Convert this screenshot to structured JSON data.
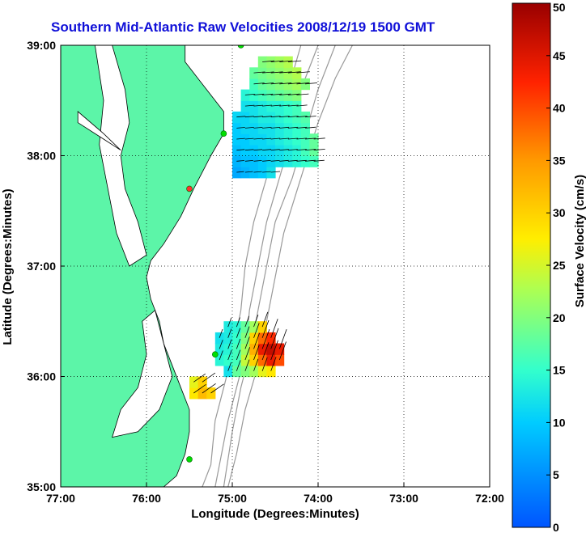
{
  "chart_data": {
    "type": "heatmap",
    "title": "Southern Mid-Atlantic Raw Velocities 2008/12/19 1500 GMT",
    "xlabel": "Longitude (Degrees:Minutes)",
    "ylabel": "Latitude (Degrees:Minutes)",
    "xlim": [
      -77,
      -72
    ],
    "ylim": [
      35,
      39
    ],
    "x_ticks": [
      {
        "value": -77,
        "label": "77:00"
      },
      {
        "value": -76,
        "label": "76:00"
      },
      {
        "value": -75,
        "label": "75:00"
      },
      {
        "value": -74,
        "label": "74:00"
      },
      {
        "value": -73,
        "label": "73:00"
      },
      {
        "value": -72,
        "label": "72:00"
      }
    ],
    "y_ticks": [
      {
        "value": 35,
        "label": "35:00"
      },
      {
        "value": 36,
        "label": "36:00"
      },
      {
        "value": 37,
        "label": "37:00"
      },
      {
        "value": 38,
        "label": "38:00"
      },
      {
        "value": 39,
        "label": "39:00"
      }
    ],
    "grid": "dotted",
    "colorbar": {
      "label": "Surface Velocity (cm/s)",
      "range": [
        0,
        50
      ],
      "ticks": [
        "0",
        "5",
        "10",
        "15",
        "20",
        "25",
        "30",
        "35",
        "40",
        "45",
        "50"
      ],
      "placement": "right"
    },
    "land_color": "#5cf5a8",
    "regions": [
      {
        "lon": [
          -74.95,
          -74.85,
          -74.75,
          -74.65,
          -74.55,
          -74.45,
          -74.35,
          -74.25,
          -74.15,
          -74.05
        ],
        "lat": [
          37.85,
          37.95,
          38.05,
          38.15,
          38.25,
          38.35,
          38.45,
          38.55,
          38.65,
          38.75,
          38.85
        ],
        "cells": [
          [
            7,
            8,
            9,
            10,
            12,
            null,
            null,
            null,
            null,
            null
          ],
          [
            8,
            9,
            9,
            10,
            11,
            12,
            13,
            14,
            15,
            16
          ],
          [
            9,
            10,
            10,
            11,
            11,
            12,
            13,
            14,
            16,
            18
          ],
          [
            10,
            10,
            11,
            11,
            12,
            13,
            14,
            15,
            16,
            18
          ],
          [
            10,
            11,
            11,
            12,
            12,
            13,
            14,
            15,
            16,
            null
          ],
          [
            11,
            11,
            12,
            13,
            13,
            14,
            15,
            16,
            17,
            null
          ],
          [
            null,
            12,
            12,
            13,
            14,
            14,
            15,
            16,
            null,
            null
          ],
          [
            null,
            14,
            15,
            16,
            17,
            18,
            19,
            20,
            null,
            null
          ],
          [
            null,
            null,
            16,
            18,
            19,
            20,
            21,
            22,
            20,
            null
          ],
          [
            null,
            null,
            18,
            19,
            20,
            21,
            22,
            23,
            null,
            null
          ],
          [
            null,
            null,
            null,
            20,
            21,
            22,
            23,
            null,
            null,
            null
          ]
        ],
        "direction_deg": 85
      },
      {
        "lon": [
          -75.15,
          -75.05,
          -74.95,
          -74.85,
          -74.75,
          -74.65,
          -74.55,
          -74.45
        ],
        "lat": [
          36.05,
          36.15,
          36.25,
          36.35,
          36.45
        ],
        "cells": [
          [
            null,
            12,
            18,
            20,
            22,
            26,
            28,
            null
          ],
          [
            14,
            15,
            16,
            24,
            30,
            38,
            44,
            40
          ],
          [
            13,
            14,
            16,
            22,
            33,
            44,
            47,
            44
          ],
          [
            12,
            13,
            15,
            20,
            30,
            38,
            42,
            null
          ],
          [
            null,
            13,
            14,
            18,
            22,
            30,
            null,
            null
          ]
        ],
        "direction_deg": 20
      },
      {
        "lon": [
          -75.45,
          -75.35,
          -75.25
        ],
        "lat": [
          35.85,
          35.95
        ],
        "cells": [
          [
            28,
            32,
            30
          ],
          [
            26,
            30,
            null
          ]
        ],
        "direction_deg": 55
      }
    ],
    "stations": [
      {
        "name": "",
        "lon": -74.9,
        "lat": 39.0,
        "color": "#00dd00"
      },
      {
        "name": "",
        "lon": -75.1,
        "lat": 38.2,
        "color": "#00dd00"
      },
      {
        "name": "",
        "lon": -75.5,
        "lat": 37.7,
        "color": "#ff3030"
      },
      {
        "name": "",
        "lon": -75.2,
        "lat": 36.2,
        "color": "#00dd00"
      },
      {
        "name": "",
        "lon": -75.5,
        "lat": 35.25,
        "color": "#00dd00"
      }
    ]
  }
}
